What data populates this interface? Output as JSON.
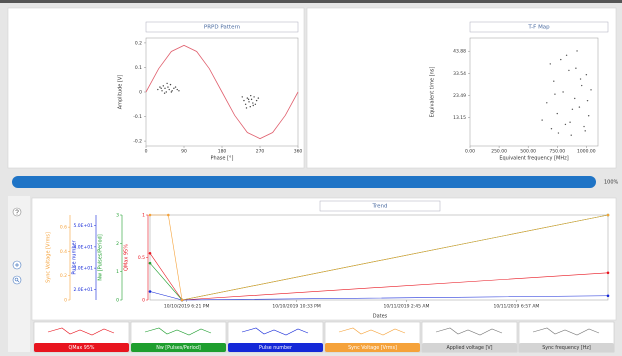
{
  "prpd": {
    "title": "PRPD Pattern",
    "x_label": "Phase [°]",
    "y_label": "Amplitude [V]",
    "xlim": [
      0,
      360
    ],
    "ylim": [
      -0.22,
      0.22
    ],
    "xticks": [
      0,
      90,
      180,
      270,
      360
    ],
    "yticks": [
      -0.2,
      -0.1,
      0,
      0.1,
      0.2
    ],
    "sine": {
      "color": "#e0606e",
      "x": [
        0,
        30,
        60,
        90,
        120,
        150,
        180,
        210,
        240,
        270,
        300,
        330,
        360
      ],
      "values": [
        0,
        0.095,
        0.165,
        0.19,
        0.165,
        0.095,
        0,
        -0.095,
        -0.165,
        -0.19,
        -0.165,
        -0.095,
        0
      ]
    },
    "points": {
      "color": "#444444",
      "x": [
        28,
        33,
        38,
        41,
        45,
        48,
        52,
        55,
        58,
        62,
        66,
        70,
        74,
        78,
        44,
        50,
        60,
        36,
        228,
        232,
        236,
        240,
        244,
        247,
        250,
        253,
        256,
        259,
        262,
        266,
        238,
        248,
        254,
        243
      ],
      "values": [
        0.01,
        0.02,
        0.005,
        0.025,
        0.015,
        0.0,
        0.02,
        0.01,
        0.03,
        0.005,
        0.015,
        0.02,
        0.01,
        0.005,
        -0.005,
        0.035,
        0.0,
        0.015,
        -0.02,
        -0.035,
        -0.05,
        -0.025,
        -0.04,
        -0.06,
        -0.03,
        -0.045,
        -0.02,
        -0.05,
        -0.035,
        -0.025,
        -0.065,
        -0.015,
        -0.055,
        -0.03
      ]
    }
  },
  "tf_map": {
    "title": "T-F Map",
    "x_label": "Equivalent frequency [MHz]",
    "y_label": "Equivalent time [ns]",
    "xlim": [
      0,
      1100
    ],
    "ylim": [
      0,
      50
    ],
    "xticks": [
      {
        "value": 0,
        "label": "0.00"
      },
      {
        "value": 250,
        "label": "250.00"
      },
      {
        "value": 500,
        "label": "500.00"
      },
      {
        "value": 750,
        "label": "750.00"
      },
      {
        "value": 1000,
        "label": "1000.00"
      }
    ],
    "yticks": [
      13.15,
      23.49,
      33.54,
      43.88
    ],
    "points": {
      "color": "#555555",
      "x": [
        620,
        660,
        700,
        720,
        750,
        780,
        800,
        820,
        850,
        870,
        900,
        920,
        940,
        960,
        980,
        1000,
        1020,
        1040,
        690,
        760,
        830,
        880,
        950,
        1010,
        730,
        860,
        910,
        990
      ],
      "values": [
        12,
        20,
        8,
        30,
        15,
        40,
        25,
        10,
        35,
        5,
        22,
        44,
        18,
        28,
        9,
        33,
        14,
        26,
        38,
        6,
        42,
        17,
        31,
        21,
        24,
        11,
        36,
        7
      ]
    }
  },
  "progress": {
    "value": 100,
    "label": "100%"
  },
  "trend": {
    "title": "Trend",
    "x_label": "Dates",
    "xlim": [
      0,
      20
    ],
    "xticks": [
      {
        "value": 1.6,
        "label": "10/10/2019 6:21 PM"
      },
      {
        "value": 6.4,
        "label": "10/10/2019 10:33 PM"
      },
      {
        "value": 11.2,
        "label": "10/11/2019 2:45 AM"
      },
      {
        "value": 16,
        "label": "10/11/2019 6:57 AM"
      }
    ],
    "series": [
      {
        "name": "QMax 95%",
        "color": "#e8141e",
        "ylim": [
          0,
          1
        ],
        "yticks": [
          0,
          0.5,
          1
        ],
        "x": [
          0,
          1.4,
          20
        ],
        "values": [
          0.55,
          0,
          0.32
        ]
      },
      {
        "name": "Nw [Pulses/Period]",
        "color": "#1e9e2e",
        "ylim": [
          0,
          3
        ],
        "yticks": [
          0,
          1,
          2,
          3
        ],
        "x": [
          0,
          1.4,
          20
        ],
        "values": [
          1.3,
          0,
          3
        ]
      },
      {
        "name": "Pulse number",
        "color": "#1428d8",
        "ylim": [
          15,
          55
        ],
        "yticks": [
          {
            "value": 20,
            "label": "2.0E+01"
          },
          {
            "value": 30,
            "label": "3.0E+01"
          },
          {
            "value": 40,
            "label": "4.0E+01"
          },
          {
            "value": 50,
            "label": "5.0E+01"
          }
        ],
        "x": [
          0,
          1.4,
          20
        ],
        "values": [
          19,
          15,
          17
        ]
      },
      {
        "name": "Sync Voltage [Vrms]",
        "color": "#f5a23a",
        "ylim": [
          0,
          0.7
        ],
        "yticks": [
          0,
          0.2,
          0.4,
          0.6
        ],
        "x": [
          0,
          0.8,
          1.4,
          20
        ],
        "values": [
          0.7,
          0.7,
          0,
          0.7
        ]
      },
      {
        "name": "Applied voltage [V]",
        "color": "#d4d4d4"
      },
      {
        "name": "Sync frequency [Hz]",
        "color": "#d4d4d4"
      }
    ]
  }
}
